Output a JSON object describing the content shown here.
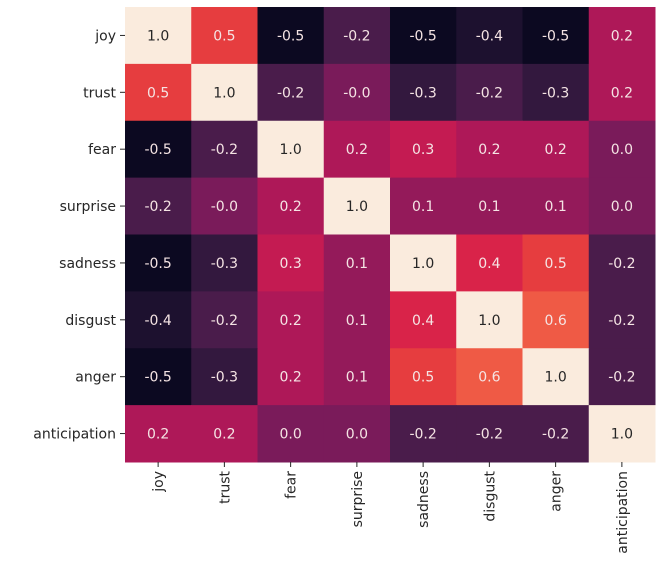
{
  "chart_data": {
    "type": "heatmap",
    "title": "",
    "xlabel": "",
    "ylabel": "",
    "colormap": "rocket",
    "colorbar": false,
    "value_range": [
      -0.55,
      1.0
    ],
    "x_labels": [
      "joy",
      "trust",
      "fear",
      "surprise",
      "sadness",
      "disgust",
      "anger",
      "anticipation"
    ],
    "y_labels": [
      "joy",
      "trust",
      "fear",
      "surprise",
      "sadness",
      "disgust",
      "anger",
      "anticipation"
    ],
    "matrix": [
      [
        1.0,
        0.5,
        -0.5,
        -0.2,
        -0.5,
        -0.4,
        -0.5,
        0.2
      ],
      [
        0.5,
        1.0,
        -0.2,
        -0.0,
        -0.3,
        -0.2,
        -0.3,
        0.2
      ],
      [
        -0.5,
        -0.2,
        1.0,
        0.2,
        0.3,
        0.2,
        0.2,
        0.0
      ],
      [
        -0.2,
        -0.0,
        0.2,
        1.0,
        0.1,
        0.1,
        0.1,
        0.0
      ],
      [
        -0.5,
        -0.3,
        0.3,
        0.1,
        1.0,
        0.4,
        0.5,
        -0.2
      ],
      [
        -0.4,
        -0.2,
        0.2,
        0.1,
        0.4,
        1.0,
        0.6,
        -0.2
      ],
      [
        -0.5,
        -0.3,
        0.2,
        0.1,
        0.5,
        0.6,
        1.0,
        -0.2
      ],
      [
        0.2,
        0.2,
        0.0,
        0.0,
        -0.2,
        -0.2,
        -0.2,
        1.0
      ]
    ],
    "annotations": [
      [
        "1.0",
        "0.5",
        "-0.5",
        "-0.2",
        "-0.5",
        "-0.4",
        "-0.5",
        "0.2"
      ],
      [
        "0.5",
        "1.0",
        "-0.2",
        "-0.0",
        "-0.3",
        "-0.2",
        "-0.3",
        "0.2"
      ],
      [
        "-0.5",
        "-0.2",
        "1.0",
        "0.2",
        "0.3",
        "0.2",
        "0.2",
        "0.0"
      ],
      [
        "-0.2",
        "-0.0",
        "0.2",
        "1.0",
        "0.1",
        "0.1",
        "0.1",
        "0.0"
      ],
      [
        "-0.5",
        "-0.3",
        "0.3",
        "0.1",
        "1.0",
        "0.4",
        "0.5",
        "-0.2"
      ],
      [
        "-0.4",
        "-0.2",
        "0.2",
        "0.1",
        "0.4",
        "1.0",
        "0.6",
        "-0.2"
      ],
      [
        "-0.5",
        "-0.3",
        "0.2",
        "0.1",
        "0.5",
        "0.6",
        "1.0",
        "-0.2"
      ],
      [
        "0.2",
        "0.2",
        "0.0",
        "0.0",
        "-0.2",
        "-0.2",
        "-0.2",
        "1.0"
      ]
    ]
  }
}
